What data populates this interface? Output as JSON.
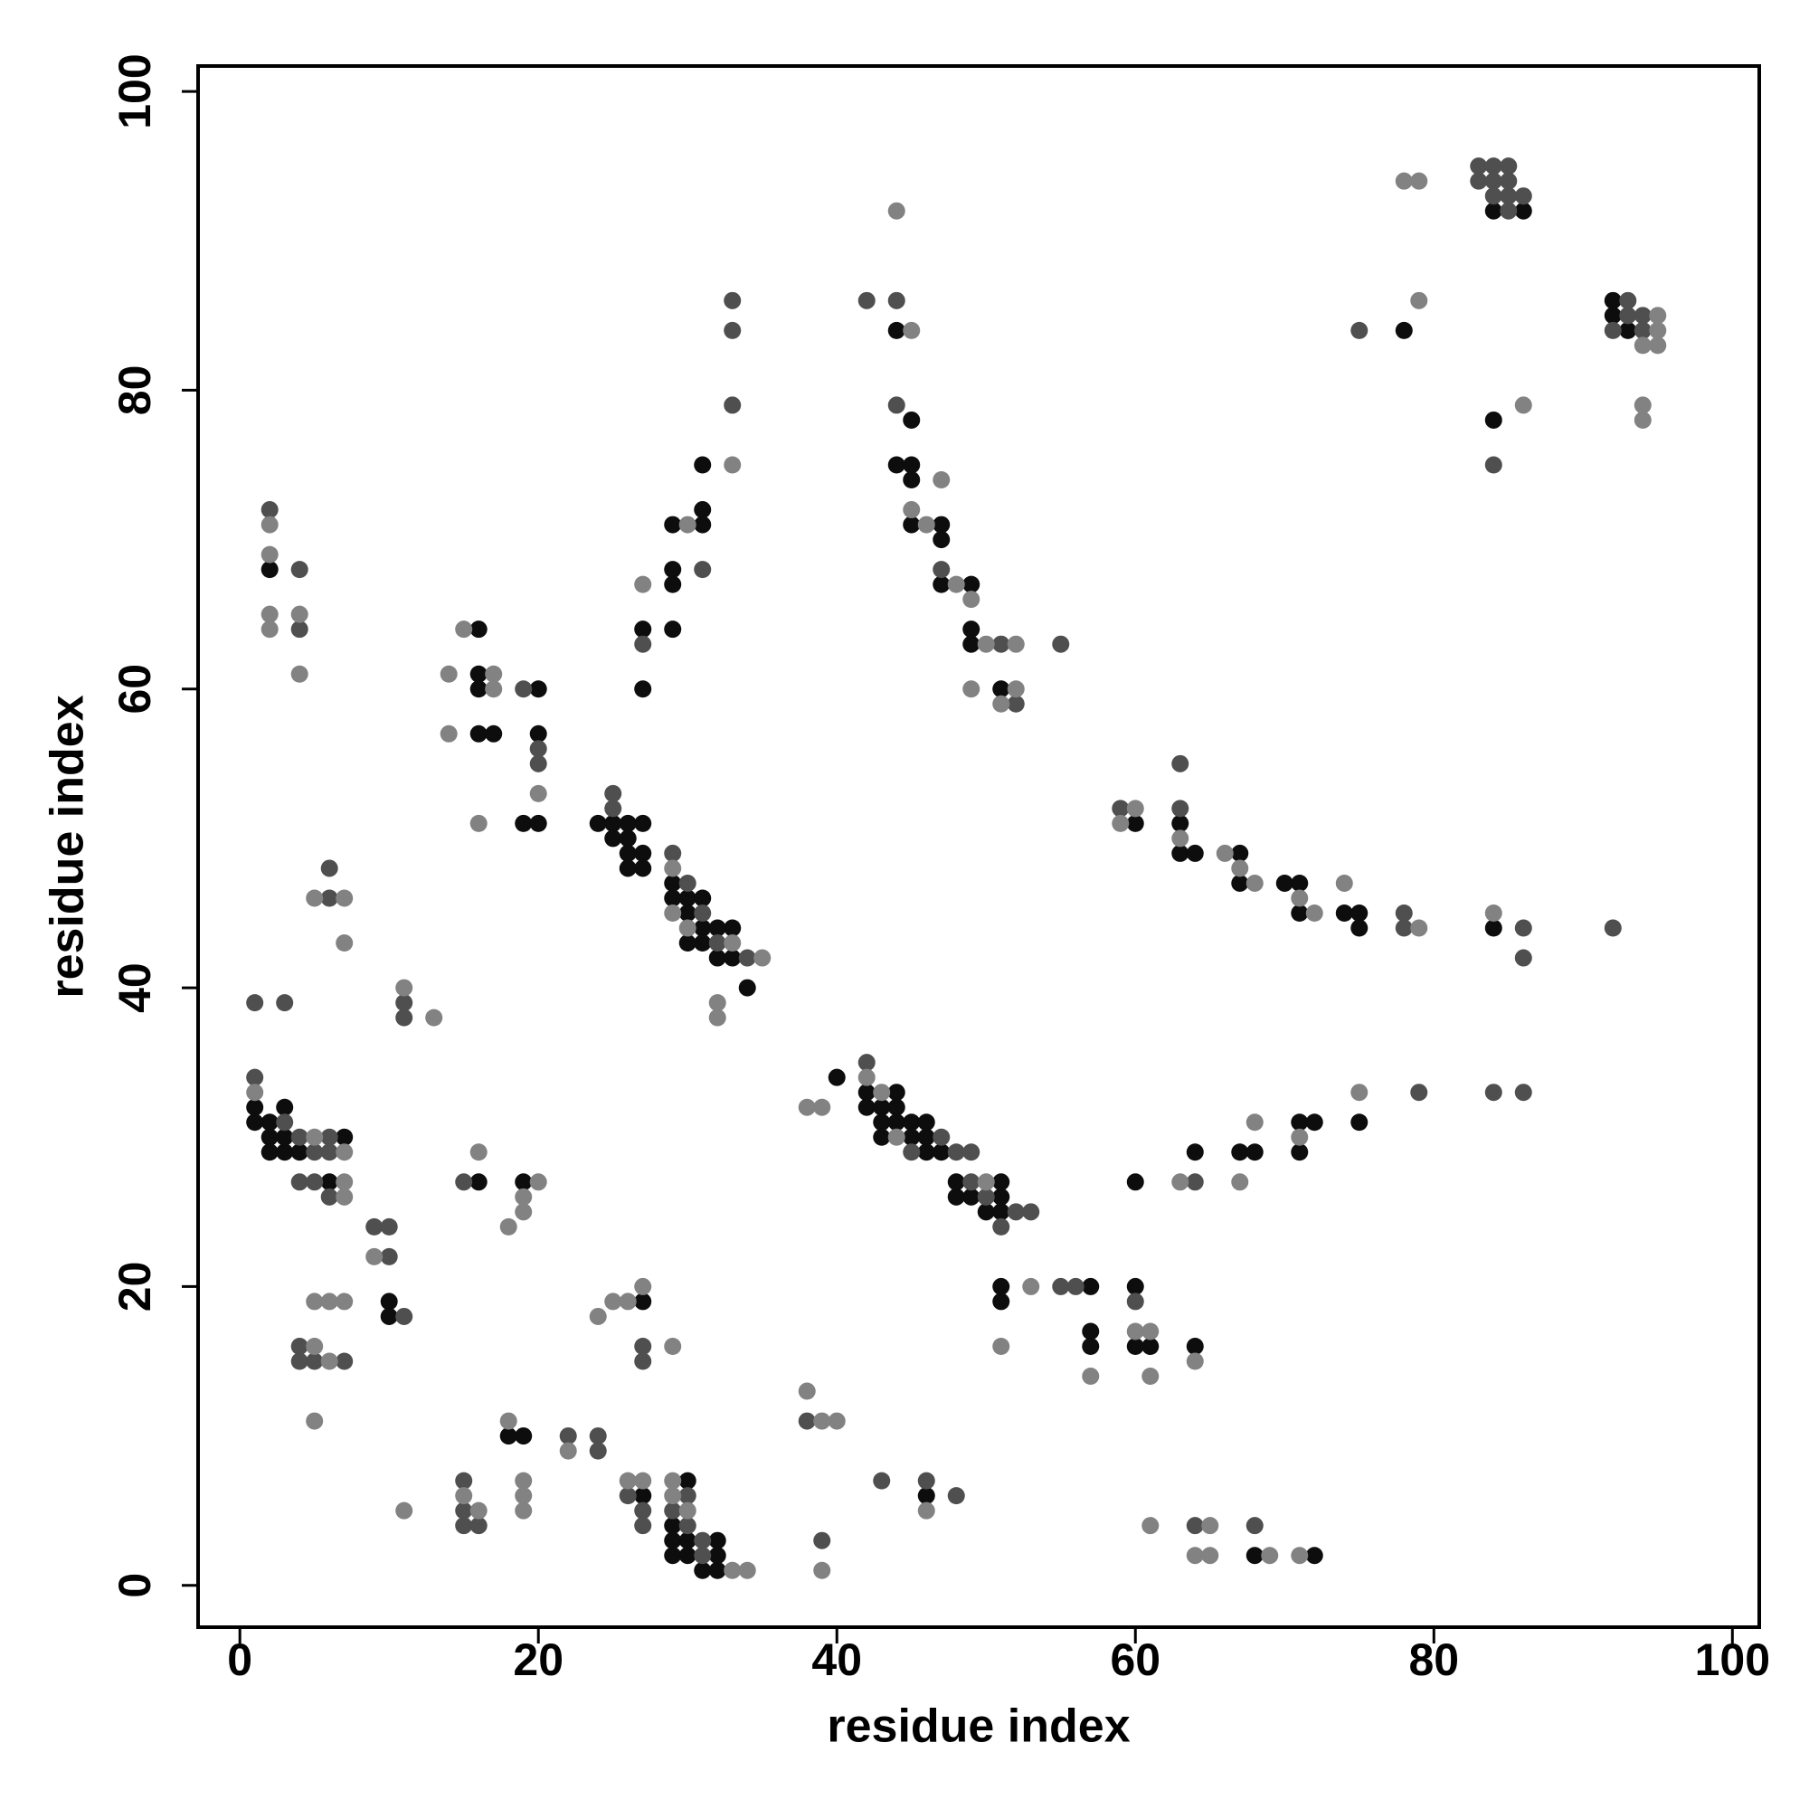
{
  "chart_data": {
    "type": "scatter",
    "x_label": "residue index",
    "y_label": "residue index",
    "xlim": [
      -2.8,
      101.8
    ],
    "ylim": [
      -2.8,
      101.7
    ],
    "xticks": [
      0,
      20,
      40,
      60,
      80,
      100
    ],
    "yticks": [
      0,
      20,
      40,
      60,
      80,
      100
    ],
    "grid": false,
    "series": [
      {
        "color": "#0d0d0d",
        "x": [
          1,
          1,
          2,
          2,
          2,
          3,
          3,
          3,
          4,
          7,
          6,
          2,
          10,
          10,
          16,
          16,
          16,
          16,
          17,
          20,
          20,
          19,
          20,
          16,
          19,
          18,
          19,
          27,
          27,
          30,
          29,
          29,
          30,
          32,
          29,
          30,
          32,
          31,
          32,
          24,
          25,
          26,
          27,
          25,
          26,
          26,
          27,
          26,
          27,
          29,
          29,
          30,
          31,
          30,
          31,
          32,
          33,
          30,
          31,
          32,
          33,
          34,
          27,
          27,
          29,
          31,
          31,
          29,
          29,
          29,
          31,
          40,
          42,
          44,
          42,
          43,
          44,
          43,
          44,
          45,
          46,
          43,
          45,
          46,
          46,
          47,
          48,
          51,
          48,
          49,
          51,
          50,
          51,
          46,
          44,
          45,
          44,
          45,
          45,
          45,
          47,
          47,
          47,
          49,
          49,
          49,
          51,
          51,
          51,
          57,
          57,
          57,
          60,
          60,
          61,
          64,
          60,
          64,
          67,
          68,
          71,
          72,
          71,
          75,
          60,
          63,
          63,
          64,
          67,
          67,
          70,
          71,
          71,
          74,
          75,
          75,
          84,
          68,
          72,
          78,
          84,
          86,
          84,
          92,
          92,
          93
        ],
        "values": [
          32,
          31,
          31,
          30,
          29,
          32,
          30,
          29,
          29,
          30,
          27,
          68,
          19,
          18,
          64,
          61,
          60,
          57,
          57,
          60,
          57,
          51,
          51,
          27,
          27,
          10,
          10,
          19,
          6,
          7,
          4,
          3,
          3,
          3,
          2,
          2,
          2,
          1,
          1,
          51,
          51,
          51,
          51,
          50,
          50,
          49,
          49,
          48,
          48,
          47,
          46,
          46,
          46,
          45,
          44,
          44,
          44,
          43,
          43,
          42,
          42,
          40,
          64,
          60,
          71,
          71,
          72,
          68,
          67,
          64,
          75,
          34,
          33,
          33,
          32,
          32,
          32,
          31,
          31,
          31,
          31,
          30,
          30,
          30,
          29,
          29,
          27,
          27,
          26,
          26,
          26,
          25,
          25,
          6,
          84,
          78,
          75,
          75,
          74,
          71,
          71,
          70,
          67,
          67,
          64,
          63,
          60,
          20,
          19,
          20,
          17,
          16,
          20,
          16,
          16,
          16,
          27,
          29,
          29,
          29,
          31,
          31,
          29,
          31,
          51,
          51,
          49,
          49,
          49,
          47,
          47,
          47,
          45,
          45,
          45,
          44,
          44,
          2,
          2,
          84,
          92,
          92,
          78,
          86,
          85,
          84
        ]
      },
      {
        "color": "#4f4f4f",
        "x": [
          1,
          3,
          4,
          5,
          6,
          6,
          4,
          5,
          6,
          1,
          3,
          4,
          4,
          5,
          7,
          6,
          6,
          2,
          4,
          4,
          9,
          10,
          10,
          11,
          11,
          11,
          19,
          20,
          20,
          15,
          15,
          15,
          15,
          16,
          22,
          24,
          24,
          27,
          27,
          26,
          27,
          27,
          30,
          29,
          30,
          31,
          31,
          25,
          25,
          29,
          30,
          31,
          32,
          34,
          27,
          31,
          33,
          33,
          33,
          38,
          39,
          42,
          47,
          45,
          48,
          49,
          49,
          50,
          52,
          53,
          51,
          43,
          46,
          48,
          42,
          44,
          44,
          47,
          51,
          55,
          52,
          55,
          56,
          60,
          64,
          79,
          84,
          86,
          59,
          63,
          63,
          78,
          78,
          86,
          86,
          92,
          64,
          68,
          75,
          83,
          84,
          85,
          83,
          84,
          85,
          84,
          85,
          86,
          85,
          84,
          93,
          93,
          94,
          92,
          94
        ],
        "values": [
          34,
          31,
          30,
          29,
          30,
          29,
          27,
          27,
          26,
          39,
          39,
          16,
          15,
          15,
          15,
          48,
          46,
          72,
          68,
          64,
          24,
          24,
          22,
          18,
          39,
          38,
          60,
          56,
          55,
          27,
          7,
          5,
          4,
          4,
          10,
          10,
          9,
          16,
          15,
          6,
          5,
          4,
          6,
          5,
          4,
          3,
          2,
          53,
          52,
          49,
          47,
          45,
          43,
          42,
          63,
          68,
          86,
          84,
          79,
          11,
          3,
          35,
          30,
          29,
          29,
          29,
          27,
          26,
          25,
          25,
          24,
          7,
          7,
          6,
          86,
          86,
          79,
          68,
          63,
          63,
          59,
          20,
          20,
          19,
          27,
          33,
          33,
          33,
          52,
          55,
          52,
          45,
          44,
          44,
          42,
          44,
          4,
          4,
          84,
          95,
          95,
          95,
          94,
          94,
          94,
          93,
          93,
          93,
          92,
          75,
          86,
          85,
          85,
          84,
          84
        ]
      },
      {
        "color": "#828282",
        "x": [
          1,
          5,
          7,
          7,
          7,
          5,
          6,
          7,
          5,
          6,
          5,
          5,
          7,
          7,
          2,
          2,
          2,
          2,
          4,
          4,
          9,
          11,
          13,
          11,
          14,
          14,
          15,
          17,
          17,
          16,
          20,
          16,
          19,
          20,
          19,
          18,
          15,
          16,
          18,
          19,
          19,
          19,
          22,
          24,
          25,
          26,
          27,
          29,
          26,
          27,
          29,
          29,
          30,
          33,
          34,
          29,
          29,
          30,
          33,
          35,
          32,
          32,
          27,
          30,
          33,
          38,
          39,
          38,
          39,
          40,
          39,
          42,
          43,
          44,
          50,
          46,
          44,
          45,
          47,
          45,
          46,
          48,
          49,
          50,
          52,
          49,
          51,
          52,
          51,
          53,
          57,
          60,
          61,
          61,
          64,
          63,
          67,
          68,
          71,
          75,
          60,
          59,
          63,
          66,
          67,
          68,
          71,
          72,
          74,
          79,
          84,
          61,
          65,
          64,
          65,
          69,
          71,
          78,
          79,
          79,
          86,
          95,
          95,
          94,
          95,
          94,
          94
        ],
        "values": [
          33,
          30,
          29,
          27,
          26,
          19,
          19,
          19,
          16,
          15,
          11,
          46,
          46,
          43,
          71,
          69,
          65,
          64,
          65,
          61,
          22,
          40,
          38,
          5,
          61,
          57,
          64,
          61,
          60,
          51,
          53,
          29,
          26,
          27,
          25,
          24,
          6,
          5,
          11,
          7,
          6,
          5,
          9,
          18,
          19,
          19,
          20,
          16,
          7,
          7,
          7,
          6,
          5,
          1,
          1,
          48,
          45,
          44,
          43,
          42,
          39,
          38,
          67,
          71,
          75,
          32,
          32,
          13,
          11,
          11,
          1,
          34,
          33,
          30,
          27,
          5,
          92,
          84,
          74,
          72,
          71,
          67,
          66,
          63,
          63,
          60,
          59,
          60,
          16,
          20,
          14,
          17,
          17,
          14,
          15,
          27,
          27,
          31,
          30,
          33,
          52,
          51,
          50,
          49,
          48,
          47,
          46,
          45,
          47,
          44,
          45,
          4,
          4,
          2,
          2,
          2,
          2,
          94,
          94,
          86,
          79,
          85,
          84,
          83,
          83,
          79,
          78
        ]
      }
    ]
  }
}
